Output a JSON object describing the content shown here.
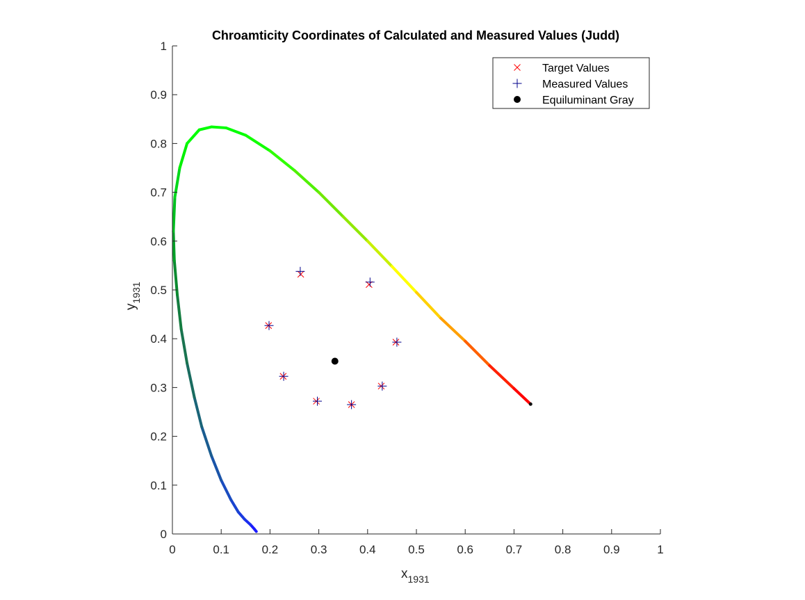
{
  "chart_data": {
    "type": "scatter",
    "title": "Chroamticity Coordinates of Calculated and Measured Values (Judd)",
    "xlabel": "x",
    "xlabel_sub": "1931",
    "ylabel": "y",
    "ylabel_sub": "1931",
    "xlim": [
      0,
      1
    ],
    "ylim": [
      0,
      1
    ],
    "xticks": [
      0,
      0.1,
      0.2,
      0.3,
      0.4,
      0.5,
      0.6,
      0.7,
      0.8,
      0.9,
      1
    ],
    "xtick_labels": [
      "0",
      "0.1",
      "0.2",
      "0.3",
      "0.4",
      "0.5",
      "0.6",
      "0.7",
      "0.8",
      "0.9",
      "1"
    ],
    "yticks": [
      0,
      0.1,
      0.2,
      0.3,
      0.4,
      0.5,
      0.6,
      0.7,
      0.8,
      0.9,
      1
    ],
    "ytick_labels": [
      "0",
      "0.1",
      "0.2",
      "0.3",
      "0.4",
      "0.5",
      "0.6",
      "0.7",
      "0.8",
      "0.9",
      "1"
    ],
    "grid": false,
    "legend_position": "top-right",
    "spectral_locus": {
      "points": [
        [
          0.172,
          0.005
        ],
        [
          0.168,
          0.01
        ],
        [
          0.16,
          0.019
        ],
        [
          0.148,
          0.03
        ],
        [
          0.135,
          0.045
        ],
        [
          0.12,
          0.07
        ],
        [
          0.1,
          0.11
        ],
        [
          0.08,
          0.16
        ],
        [
          0.06,
          0.22
        ],
        [
          0.045,
          0.28
        ],
        [
          0.03,
          0.35
        ],
        [
          0.018,
          0.42
        ],
        [
          0.01,
          0.49
        ],
        [
          0.004,
          0.56
        ],
        [
          0.002,
          0.62
        ],
        [
          0.005,
          0.69
        ],
        [
          0.015,
          0.75
        ],
        [
          0.03,
          0.8
        ],
        [
          0.055,
          0.828
        ],
        [
          0.08,
          0.834
        ],
        [
          0.11,
          0.832
        ],
        [
          0.15,
          0.817
        ],
        [
          0.2,
          0.785
        ],
        [
          0.25,
          0.745
        ],
        [
          0.3,
          0.7
        ],
        [
          0.35,
          0.65
        ],
        [
          0.4,
          0.6
        ],
        [
          0.45,
          0.548
        ],
        [
          0.5,
          0.495
        ],
        [
          0.55,
          0.442
        ],
        [
          0.6,
          0.395
        ],
        [
          0.65,
          0.345
        ],
        [
          0.7,
          0.298
        ],
        [
          0.734,
          0.266
        ]
      ],
      "colors": [
        "#1a1aff",
        "#1a1aff",
        "#1a2cf0",
        "#1a3ae0",
        "#1a44d0",
        "#1a4cc0",
        "#1a54a8",
        "#1a5c90",
        "#1a6478",
        "#1a6c60",
        "#1a7450",
        "#147c40",
        "#0c8a30",
        "#06a028",
        "#00c020",
        "#00d81a",
        "#00f000",
        "#00ff00",
        "#00ff00",
        "#00ff00",
        "#00ff00",
        "#10ff00",
        "#30ff00",
        "#50f000",
        "#70e800",
        "#90e800",
        "#c8f000",
        "#ffff00",
        "#ffd000",
        "#ffa000",
        "#ff6000",
        "#ff2000",
        "#ff0000",
        "#ff0000"
      ]
    },
    "series": [
      {
        "name": "Target Values",
        "marker": "x",
        "color": "#ff0000",
        "x": [
          0.263,
          0.403,
          0.458,
          0.428,
          0.367,
          0.295,
          0.227,
          0.197
        ],
        "y": [
          0.532,
          0.511,
          0.393,
          0.303,
          0.265,
          0.272,
          0.323,
          0.427
        ]
      },
      {
        "name": "Measured Values",
        "marker": "+",
        "color": "#00008b",
        "x": [
          0.262,
          0.405,
          0.46,
          0.43,
          0.367,
          0.297,
          0.228,
          0.198
        ],
        "y": [
          0.538,
          0.516,
          0.393,
          0.303,
          0.265,
          0.272,
          0.323,
          0.427
        ]
      },
      {
        "name": "Equiluminant Gray",
        "marker": "filled-circle",
        "color": "#000000",
        "x": [
          0.333
        ],
        "y": [
          0.354
        ]
      }
    ]
  }
}
